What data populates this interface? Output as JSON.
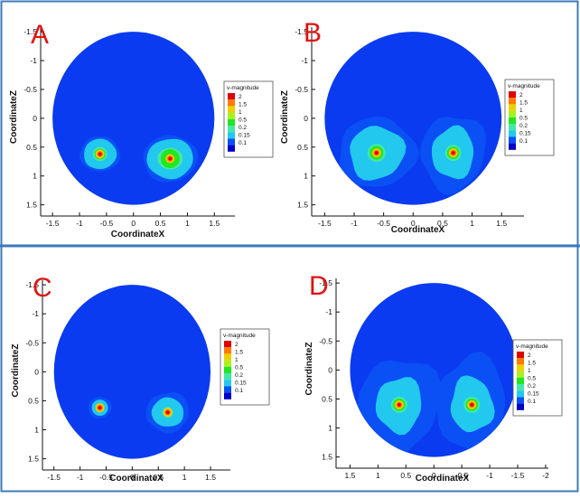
{
  "colors": {
    "background": "#0a3bf0",
    "frame": "#3f7ab8",
    "divider": "#3a78bd",
    "panel_letter": "#e0120e",
    "axis": "#111111",
    "levels": [
      "#0000c8",
      "#0a50f5",
      "#22c8ee",
      "#44e8a8",
      "#22e622",
      "#aaf020",
      "#f0d000",
      "#ff7a00",
      "#e00000"
    ]
  },
  "chart_data": [
    {
      "type": "contour",
      "panel_label": "A",
      "xlabel": "CoordinateX",
      "ylabel": "CoordinateZ",
      "xticks": [
        "-1.5",
        "-1",
        "-0.5",
        "0",
        "0.5",
        "1",
        "1.5"
      ],
      "yticks": [
        "-1.5",
        "-1",
        "-0.5",
        "0",
        "0.5",
        "1",
        "1.5"
      ],
      "xlim": [
        -1.72,
        1.88
      ],
      "ylim": [
        -1.58,
        1.6
      ],
      "x_reversed": false,
      "y_reversed": true,
      "domain": {
        "shape": "circle",
        "center": [
          0,
          0
        ],
        "radius": 1.5
      },
      "legend": {
        "title": "v-magnitude",
        "levels": [
          "2",
          "1.5",
          "1",
          "0.5",
          "0.2",
          "0.15",
          "0.1"
        ],
        "placement": "right"
      },
      "sources": [
        {
          "x": -0.62,
          "z": 0.62,
          "peak": 2
        },
        {
          "x": 0.68,
          "z": 0.7,
          "peak": 2
        }
      ]
    },
    {
      "type": "contour",
      "panel_label": "B",
      "xlabel": "CoordinateX",
      "ylabel": "CoordinateZ",
      "xticks": [
        "-1.5",
        "-1",
        "-0.5",
        "0",
        "0.5",
        "1",
        "1.5"
      ],
      "yticks": [
        "-1.5",
        "-1",
        "-0.5",
        "0",
        "0.5",
        "1",
        "1.5"
      ],
      "xlim": [
        -1.72,
        1.88
      ],
      "ylim": [
        -1.58,
        1.6
      ],
      "x_reversed": false,
      "y_reversed": true,
      "domain": {
        "shape": "circle",
        "center": [
          0,
          0
        ],
        "radius": 1.5
      },
      "legend": {
        "title": "v-magnitude",
        "levels": [
          "2",
          "1.5",
          "1",
          "0.5",
          "0.2",
          "0.15",
          "0.1"
        ],
        "placement": "right"
      },
      "sources": [
        {
          "x": -0.62,
          "z": 0.6,
          "peak": 2
        },
        {
          "x": 0.68,
          "z": 0.6,
          "peak": 2
        }
      ]
    },
    {
      "type": "contour",
      "panel_label": "C",
      "xlabel": "CoordinateX",
      "ylabel": "CoordinateZ",
      "xticks": [
        "-1.5",
        "-1",
        "-0.5",
        "0",
        "0.5",
        "1",
        "1.5"
      ],
      "yticks": [
        "-1.5",
        "-1",
        "-0.5",
        "0",
        "0.5",
        "1",
        "1.5"
      ],
      "xlim": [
        -1.72,
        1.88
      ],
      "ylim": [
        -1.58,
        1.6
      ],
      "x_reversed": false,
      "y_reversed": true,
      "domain": {
        "shape": "circle",
        "center": [
          0,
          0
        ],
        "radius": 1.5
      },
      "legend": {
        "title": "v-magnitude",
        "levels": [
          "2",
          "1.5",
          "1",
          "0.5",
          "0.2",
          "0.15",
          "0.1"
        ],
        "placement": "right"
      },
      "sources": [
        {
          "x": -0.62,
          "z": 0.62,
          "peak": 2
        },
        {
          "x": 0.68,
          "z": 0.7,
          "peak": 2
        }
      ]
    },
    {
      "type": "contour",
      "panel_label": "D",
      "xlabel": "CoordinateX",
      "ylabel": "CoordinateZ",
      "xticks": [
        "1.5",
        "1",
        "0.5",
        "0",
        "-0.5",
        "-1",
        "-1.5",
        "-2"
      ],
      "yticks": [
        "-1.5",
        "-1",
        "-0.5",
        "0",
        "0.5",
        "1",
        "1.5"
      ],
      "xlim": [
        1.75,
        -2.05
      ],
      "ylim": [
        -1.58,
        1.6
      ],
      "x_reversed": true,
      "y_reversed": true,
      "domain": {
        "shape": "circle",
        "center": [
          0,
          0
        ],
        "radius": 1.5
      },
      "legend": {
        "title": "v-magnitude",
        "levels": [
          "2",
          "1.5",
          "1",
          "0.5",
          "0.2",
          "0.15",
          "0.1"
        ],
        "placement": "right"
      },
      "sources": [
        {
          "x": 0.62,
          "z": 0.6,
          "peak": 2
        },
        {
          "x": -0.68,
          "z": 0.6,
          "peak": 2
        }
      ]
    }
  ]
}
